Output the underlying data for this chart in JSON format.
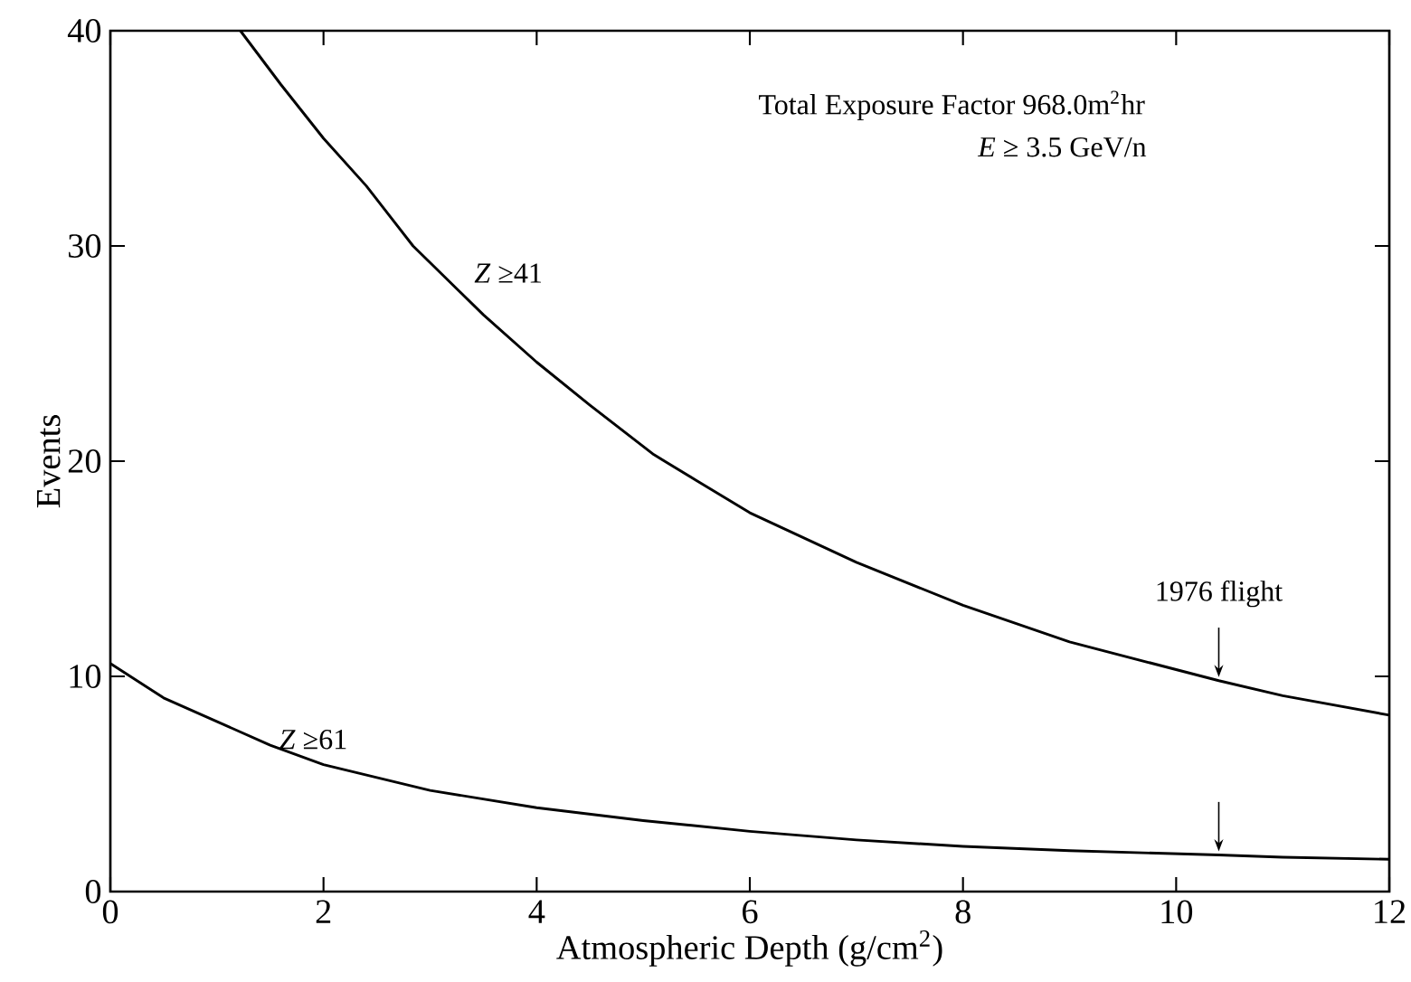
{
  "chart_data": {
    "type": "line",
    "xlabel": "Atmospheric Depth (g/cm$^{2}$)",
    "ylabel": "Events",
    "xlim": [
      0,
      12
    ],
    "ylim": [
      0,
      40
    ],
    "xticks": [
      0,
      2,
      4,
      6,
      8,
      10,
      12
    ],
    "yticks": [
      0,
      10,
      20,
      30,
      40
    ],
    "grid": false,
    "legend": false,
    "marker": "none",
    "line_style": "solid",
    "series": [
      {
        "name": "*Z* ≥41",
        "color": "#000000",
        "x": [
          1.22,
          1.6,
          2.0,
          2.4,
          2.84,
          3.5,
          4.0,
          4.5,
          5.1,
          5.5,
          6,
          7,
          8,
          9,
          10.4,
          11,
          12
        ],
        "values": [
          40,
          37.5,
          35,
          32.8,
          30,
          26.8,
          24.6,
          22.6,
          20.3,
          19.1,
          17.6,
          15.3,
          13.3,
          11.6,
          9.8,
          9.1,
          8.2
        ]
      },
      {
        "name": "*Z* ≥61",
        "color": "#000000",
        "x": [
          0,
          0.5,
          1,
          1.5,
          2,
          3,
          4,
          5,
          6,
          7,
          8,
          9,
          10.4,
          11,
          12
        ],
        "values": [
          10.6,
          9.0,
          7.9,
          6.8,
          5.9,
          4.7,
          3.9,
          3.3,
          2.8,
          2.4,
          2.1,
          1.9,
          1.7,
          1.6,
          1.5
        ]
      }
    ],
    "annotations": [
      "Total Exposure Factor 968.0m$^{2}$hr",
      "*E* ≥ 3.5 GeV/n",
      {
        "text": "1976 flight",
        "x": 10.4,
        "y": 9.8
      }
    ]
  }
}
